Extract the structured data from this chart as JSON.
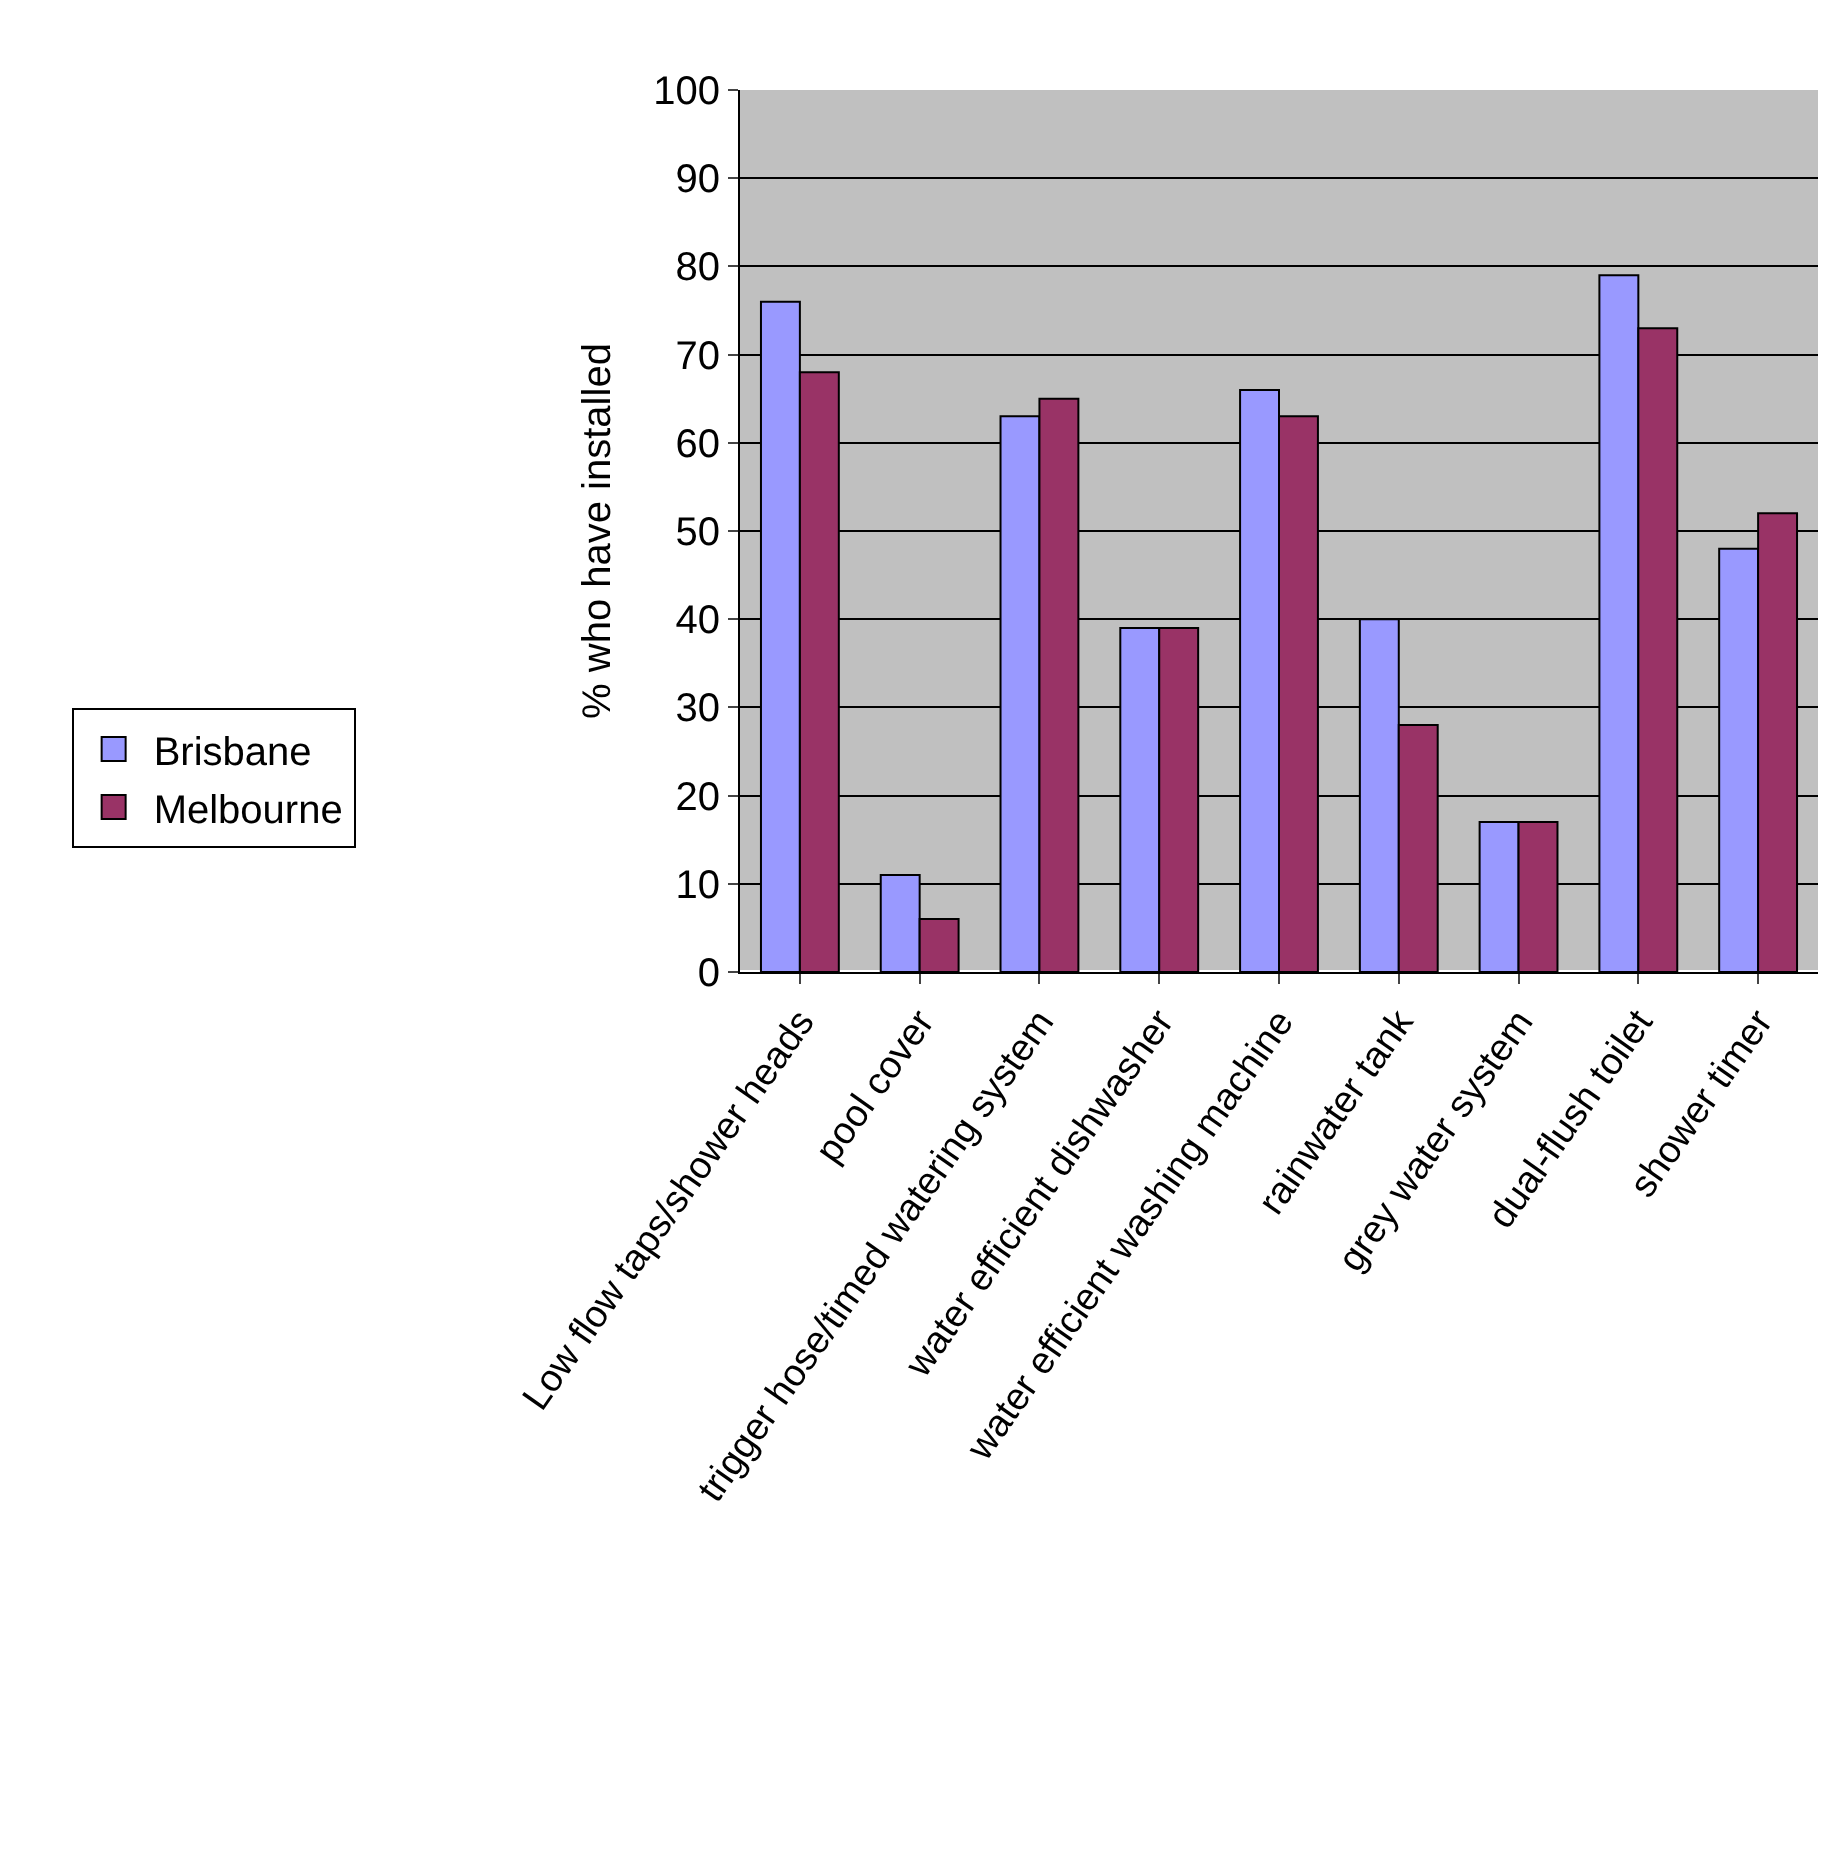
{
  "chart_data": {
    "type": "bar",
    "ylabel": "% who have installed",
    "categories": [
      "Low flow taps/shower heads",
      "pool cover",
      "trigger hose/timed watering system",
      "water efficient dishwasher",
      "water efficient washing machine",
      "rainwater tank",
      "grey water system",
      "dual-flush toilet",
      "shower timer"
    ],
    "series": [
      {
        "name": "Brisbane",
        "color": "#9999ff",
        "values": [
          76,
          11,
          63,
          39,
          66,
          40,
          17,
          79,
          48
        ]
      },
      {
        "name": "Melbourne",
        "color": "#993366",
        "values": [
          68,
          6,
          65,
          39,
          63,
          28,
          17,
          73,
          52
        ]
      }
    ],
    "ylim": [
      0,
      100
    ],
    "yticks": [
      0,
      10,
      20,
      30,
      40,
      50,
      60,
      70,
      80,
      90,
      100
    ],
    "grid": "y",
    "legend": "left"
  }
}
